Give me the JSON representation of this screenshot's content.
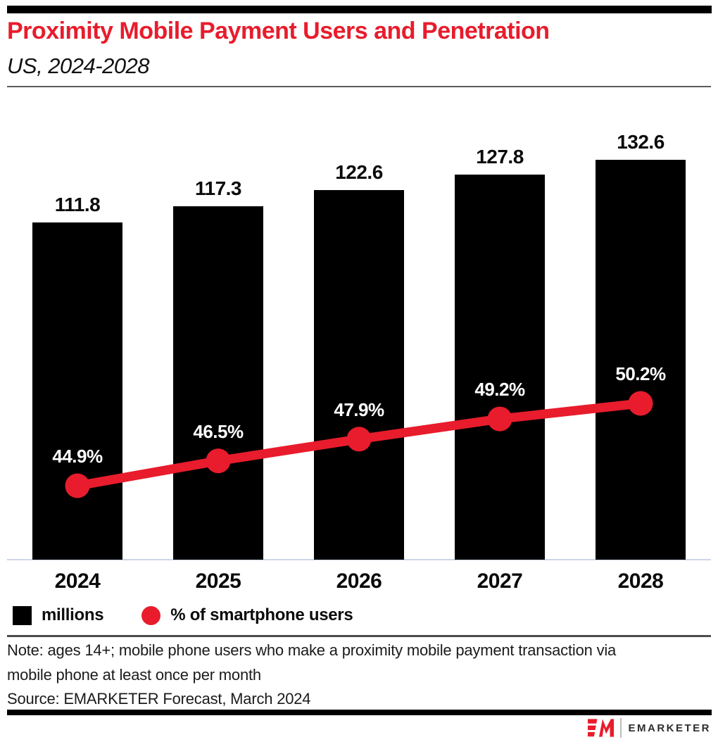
{
  "header": {
    "title": "Proximity Mobile Payment Users and Penetration",
    "subtitle": "US, 2024-2028"
  },
  "chart_data": {
    "type": "bar",
    "subtype": "bar-line-combo",
    "categories": [
      "2024",
      "2025",
      "2026",
      "2027",
      "2028"
    ],
    "series": [
      {
        "name": "millions",
        "type": "bar",
        "color": "#000000",
        "values": [
          111.8,
          117.3,
          122.6,
          127.8,
          132.6
        ],
        "labels": [
          "111.8",
          "117.3",
          "122.6",
          "127.8",
          "132.6"
        ]
      },
      {
        "name": "% of smartphone users",
        "type": "line",
        "color": "#e81c2c",
        "values": [
          44.9,
          46.5,
          47.9,
          49.2,
          50.2
        ],
        "labels": [
          "44.9%",
          "46.5%",
          "47.9%",
          "49.2%",
          "50.2%"
        ]
      }
    ],
    "title": "Proximity Mobile Payment Users and Penetration",
    "subtitle": "US, 2024-2028",
    "xlabel": "",
    "ylabel": "",
    "grid": false,
    "legend_position": "bottom"
  },
  "legend": {
    "items": [
      {
        "label": "millions",
        "swatch": "square",
        "color": "#000000"
      },
      {
        "label": "% of smartphone users",
        "swatch": "circle",
        "color": "#e81c2c"
      }
    ]
  },
  "footer": {
    "note_line1": "Note: ages 14+; mobile phone users who make a proximity mobile payment transaction via",
    "note_line2": "mobile phone at least once per month",
    "source": "Source: EMARKETER Forecast, March 2024",
    "logo_text": "EMARKETER"
  },
  "colors": {
    "accent": "#e81c2c",
    "bar": "#000000",
    "axis_line": "#ccd6e8"
  }
}
